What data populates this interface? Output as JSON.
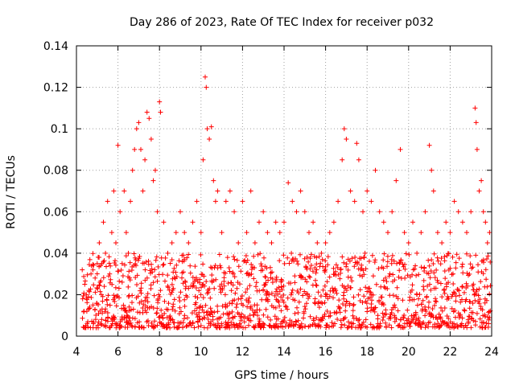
{
  "chart_data": {
    "type": "scatter",
    "title": "Day 286 of 2023, Rate Of TEC Index for receiver p032",
    "xlabel": "GPS time / hours",
    "ylabel": "ROTI / TECUs",
    "xlim": [
      4,
      24
    ],
    "ylim": [
      0,
      0.14
    ],
    "x_ticks": [
      4,
      6,
      8,
      10,
      12,
      14,
      16,
      18,
      20,
      22,
      24
    ],
    "x_tick_labels": [
      "4",
      "6",
      "8",
      "10",
      "12",
      "14",
      "16",
      "18",
      "20",
      "22",
      "24"
    ],
    "y_ticks": [
      0,
      0.02,
      0.04,
      0.06,
      0.08,
      0.1,
      0.12,
      0.14
    ],
    "y_tick_labels": [
      "0",
      "0.02",
      "0.04",
      "0.06",
      "0.08",
      "0.1",
      "0.12",
      "0.14"
    ],
    "grid": true,
    "marker": "plus",
    "color": "#ff0000",
    "series": [
      {
        "name": "ROTI",
        "points": [
          [
            4.3,
            0.018
          ],
          [
            4.4,
            0.025
          ],
          [
            4.5,
            0.012
          ],
          [
            4.6,
            0.022
          ],
          [
            4.7,
            0.03
          ],
          [
            4.8,
            0.015
          ],
          [
            4.9,
            0.028
          ],
          [
            5.0,
            0.035
          ],
          [
            5.1,
            0.045
          ],
          [
            5.2,
            0.02
          ],
          [
            5.3,
            0.055
          ],
          [
            5.4,
            0.04
          ],
          [
            5.5,
            0.065
          ],
          [
            5.6,
            0.03
          ],
          [
            5.7,
            0.05
          ],
          [
            5.8,
            0.07
          ],
          [
            5.9,
            0.045
          ],
          [
            6.0,
            0.092
          ],
          [
            6.1,
            0.06
          ],
          [
            6.2,
            0.035
          ],
          [
            6.3,
            0.07
          ],
          [
            6.4,
            0.05
          ],
          [
            6.5,
            0.04
          ],
          [
            6.6,
            0.065
          ],
          [
            6.7,
            0.08
          ],
          [
            6.8,
            0.09
          ],
          [
            6.9,
            0.1
          ],
          [
            7.0,
            0.103
          ],
          [
            7.1,
            0.09
          ],
          [
            7.2,
            0.07
          ],
          [
            7.3,
            0.085
          ],
          [
            7.4,
            0.108
          ],
          [
            7.5,
            0.105
          ],
          [
            7.6,
            0.095
          ],
          [
            7.7,
            0.075
          ],
          [
            7.8,
            0.08
          ],
          [
            7.9,
            0.06
          ],
          [
            8.0,
            0.113
          ],
          [
            8.05,
            0.108
          ],
          [
            8.2,
            0.055
          ],
          [
            8.4,
            0.04
          ],
          [
            8.6,
            0.045
          ],
          [
            8.8,
            0.05
          ],
          [
            9.0,
            0.06
          ],
          [
            9.2,
            0.05
          ],
          [
            9.4,
            0.045
          ],
          [
            9.6,
            0.055
          ],
          [
            9.8,
            0.065
          ],
          [
            10.0,
            0.05
          ],
          [
            10.1,
            0.085
          ],
          [
            10.2,
            0.125
          ],
          [
            10.25,
            0.12
          ],
          [
            10.3,
            0.1
          ],
          [
            10.4,
            0.095
          ],
          [
            10.5,
            0.101
          ],
          [
            10.6,
            0.075
          ],
          [
            10.7,
            0.065
          ],
          [
            10.8,
            0.07
          ],
          [
            11.0,
            0.05
          ],
          [
            11.2,
            0.065
          ],
          [
            11.4,
            0.07
          ],
          [
            11.6,
            0.06
          ],
          [
            11.8,
            0.045
          ],
          [
            12.0,
            0.065
          ],
          [
            12.2,
            0.05
          ],
          [
            12.4,
            0.07
          ],
          [
            12.6,
            0.045
          ],
          [
            12.8,
            0.055
          ],
          [
            13.0,
            0.06
          ],
          [
            13.2,
            0.05
          ],
          [
            13.4,
            0.045
          ],
          [
            13.6,
            0.055
          ],
          [
            13.8,
            0.05
          ],
          [
            14.0,
            0.055
          ],
          [
            14.2,
            0.074
          ],
          [
            14.4,
            0.065
          ],
          [
            14.6,
            0.06
          ],
          [
            14.8,
            0.07
          ],
          [
            15.0,
            0.06
          ],
          [
            15.2,
            0.05
          ],
          [
            15.4,
            0.055
          ],
          [
            15.6,
            0.045
          ],
          [
            15.8,
            0.04
          ],
          [
            16.0,
            0.045
          ],
          [
            16.2,
            0.05
          ],
          [
            16.4,
            0.055
          ],
          [
            16.6,
            0.065
          ],
          [
            16.8,
            0.085
          ],
          [
            16.9,
            0.1
          ],
          [
            17.0,
            0.095
          ],
          [
            17.2,
            0.07
          ],
          [
            17.4,
            0.065
          ],
          [
            17.5,
            0.093
          ],
          [
            17.6,
            0.085
          ],
          [
            17.8,
            0.06
          ],
          [
            18.0,
            0.07
          ],
          [
            18.2,
            0.065
          ],
          [
            18.4,
            0.08
          ],
          [
            18.6,
            0.06
          ],
          [
            18.8,
            0.055
          ],
          [
            19.0,
            0.05
          ],
          [
            19.2,
            0.06
          ],
          [
            19.4,
            0.075
          ],
          [
            19.6,
            0.09
          ],
          [
            19.8,
            0.05
          ],
          [
            20.0,
            0.045
          ],
          [
            20.2,
            0.055
          ],
          [
            20.4,
            0.04
          ],
          [
            20.6,
            0.05
          ],
          [
            20.8,
            0.06
          ],
          [
            21.0,
            0.092
          ],
          [
            21.1,
            0.08
          ],
          [
            21.2,
            0.07
          ],
          [
            21.4,
            0.05
          ],
          [
            21.6,
            0.045
          ],
          [
            21.8,
            0.055
          ],
          [
            22.0,
            0.05
          ],
          [
            22.2,
            0.065
          ],
          [
            22.4,
            0.06
          ],
          [
            22.6,
            0.055
          ],
          [
            22.8,
            0.05
          ],
          [
            23.0,
            0.06
          ],
          [
            23.2,
            0.11
          ],
          [
            23.25,
            0.103
          ],
          [
            23.3,
            0.09
          ],
          [
            23.4,
            0.07
          ],
          [
            23.5,
            0.075
          ],
          [
            23.6,
            0.06
          ],
          [
            23.7,
            0.055
          ],
          [
            23.8,
            0.045
          ],
          [
            23.9,
            0.05
          ]
        ],
        "baseline": {
          "x_start": 4.3,
          "x_end": 23.95,
          "x_step": 0.06,
          "y_min": 0.004,
          "y_typical_max": 0.04
        }
      }
    ]
  }
}
